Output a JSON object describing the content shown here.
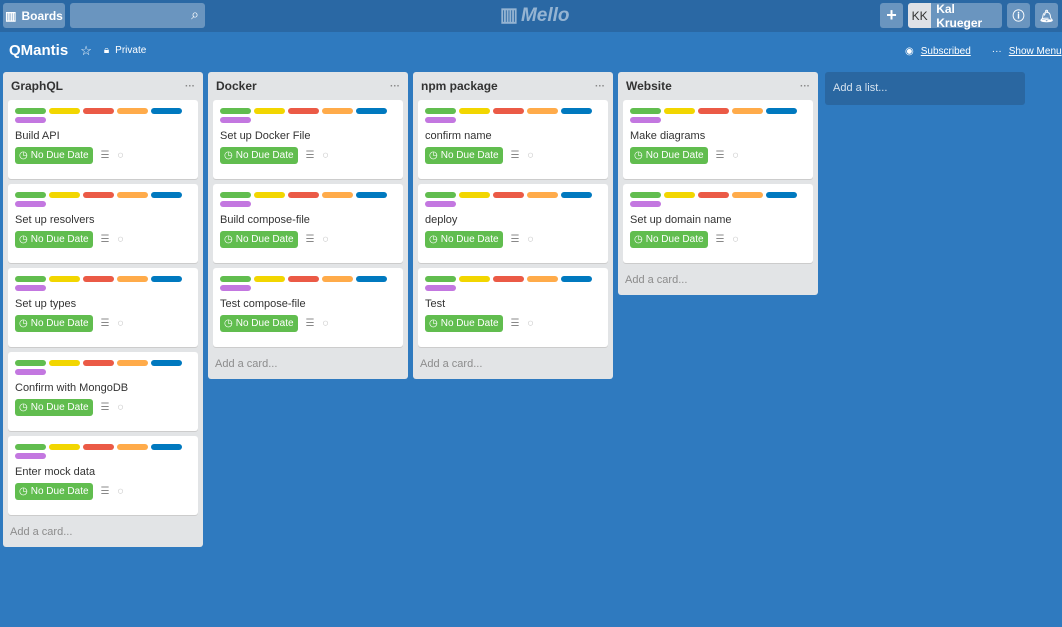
{
  "header": {
    "boards_label": "Boards",
    "search_placeholder": "",
    "logo": "Mello",
    "add_label": "+",
    "avatar_initials": "KK",
    "user_name": "Kal Krueger",
    "info_icon": "info-icon",
    "bell_icon": "bell-icon"
  },
  "board": {
    "title": "QMantis",
    "visibility": "Private",
    "subscribed": "Subscribed",
    "show_menu": "Show Menu"
  },
  "label_colors": [
    "#61bd4f",
    "#f2d600",
    "#eb5a46",
    "#ffab4a",
    "#0079bf",
    "#c377e0"
  ],
  "due_label": "No Due Date",
  "add_card": "Add a card...",
  "add_list": "Add a list...",
  "lists": [
    {
      "title": "GraphQL",
      "cards": [
        "Build API",
        "Set up resolvers",
        "Set up types",
        "Confirm with MongoDB",
        "Enter mock data"
      ]
    },
    {
      "title": "Docker",
      "cards": [
        "Set up Docker File",
        "Build compose-file",
        "Test compose-file"
      ]
    },
    {
      "title": "npm package",
      "cards": [
        "confirm name",
        "deploy",
        "Test"
      ]
    },
    {
      "title": "Website",
      "cards": [
        "Make diagrams",
        "Set up domain name"
      ]
    }
  ]
}
